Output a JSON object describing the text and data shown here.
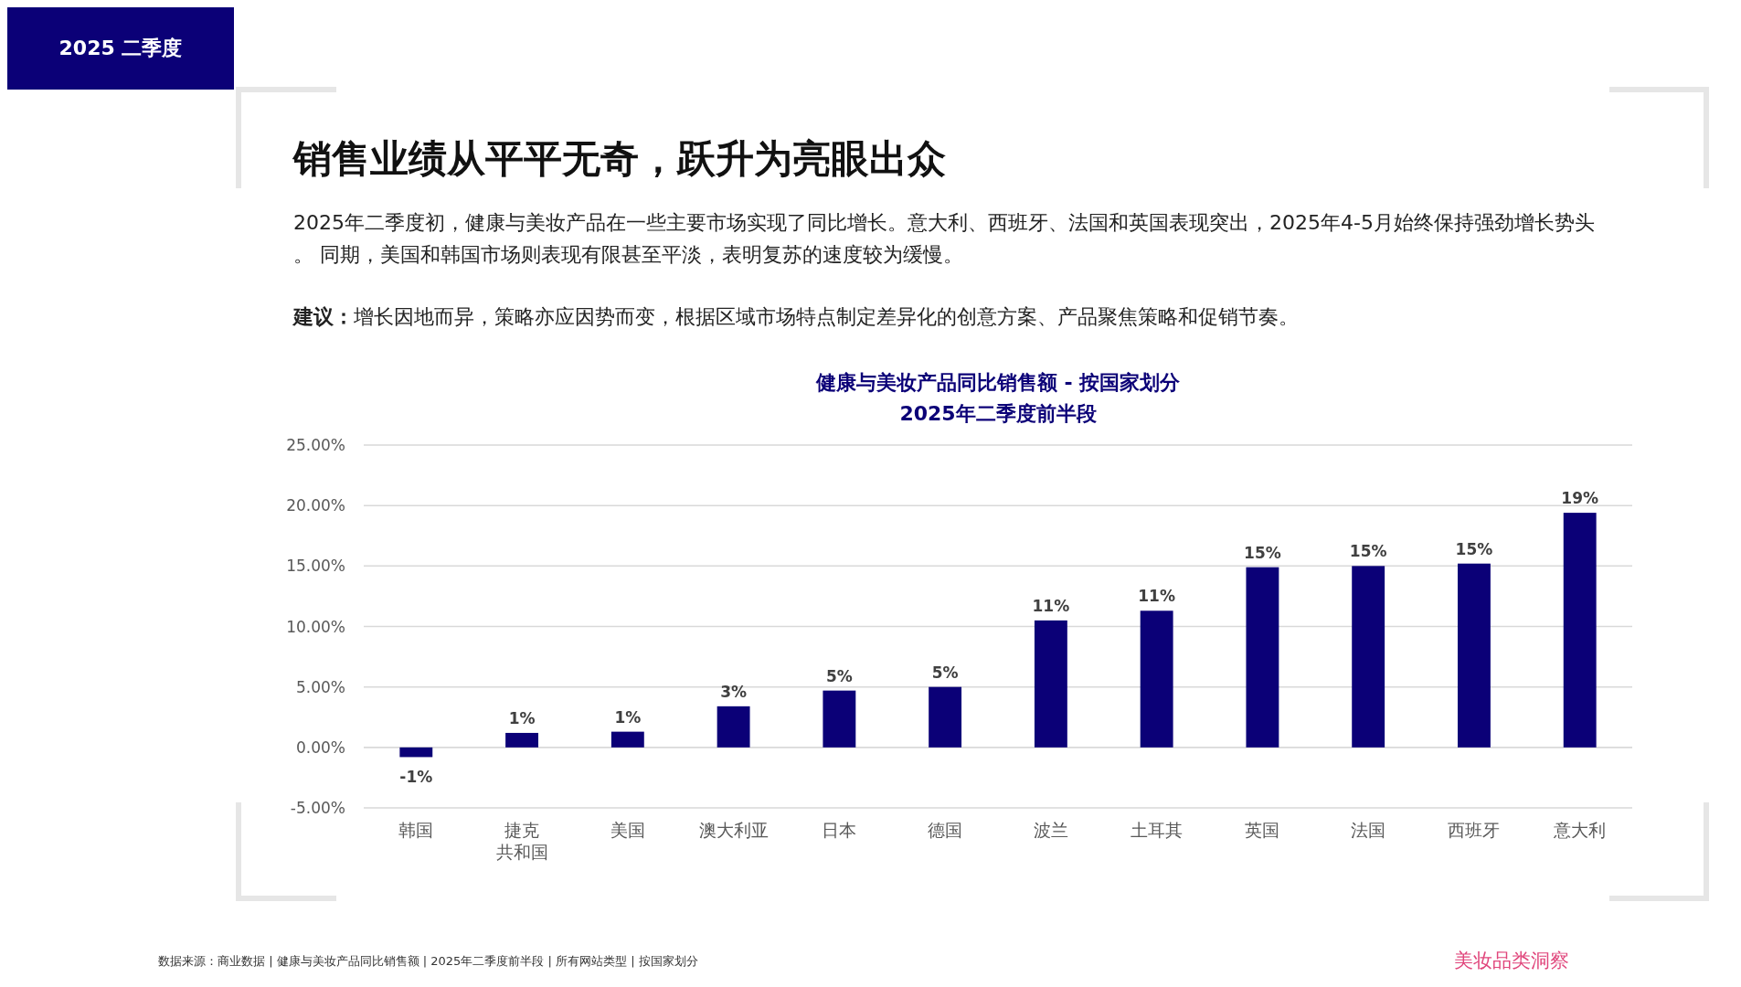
{
  "chart_data": {
    "type": "bar",
    "title": "健康与美妆产品同比销售额 - 按国家划分",
    "subtitle": "2025年二季度前半段",
    "annotations": [
      "2025 二季度",
      "销售业绩从平平无奇，跃升为亮眼出众",
      "2025年二季度初，健康与美妆产品在一些主要市场实现了同比增长。意大利、西班牙、法国和英国表现突出，2025年4-5月始终保持强劲增长势头。 同期，美国和韩国市场则表现有限甚至平淡，表明复苏的速度较为缓慢。",
      "建议：增长因地而异，策略亦应因势而变，根据区域市场特点制定差异化的创意方案、产品聚焦策略和促销节奏。",
      "数据来源：商业数据 | 健康与美妆产品同比销售额 | 2025年二季度前半段 | 所有网站类型 | 按国家划分",
      "美妆品类洞察"
    ],
    "categories": [
      "韩国",
      "捷克共和国",
      "美国",
      "澳大利亚",
      "日本",
      "德国",
      "波兰",
      "土耳其",
      "英国",
      "法国",
      "西班牙",
      "意大利"
    ],
    "values": [
      -0.8,
      1.2,
      1.3,
      3.4,
      4.7,
      5.0,
      10.5,
      11.3,
      14.9,
      15.0,
      15.2,
      19.4
    ],
    "value_labels": [
      "-1%",
      "1%",
      "1%",
      "3%",
      "5%",
      "5%",
      "11%",
      "11%",
      "15%",
      "15%",
      "15%",
      "19%"
    ],
    "color": "#0b0077",
    "ylim": [
      -5,
      25
    ],
    "yticks": [
      {
        "value": -5,
        "label": "-5.00%"
      },
      {
        "value": 0,
        "label": "0.00%"
      },
      {
        "value": 5,
        "label": "5.00%"
      },
      {
        "value": 10,
        "label": "10.00%"
      },
      {
        "value": 15,
        "label": "15.00%"
      },
      {
        "value": 20,
        "label": "20.00%"
      },
      {
        "value": 25,
        "label": "25.00%"
      }
    ],
    "grid": "y"
  }
}
